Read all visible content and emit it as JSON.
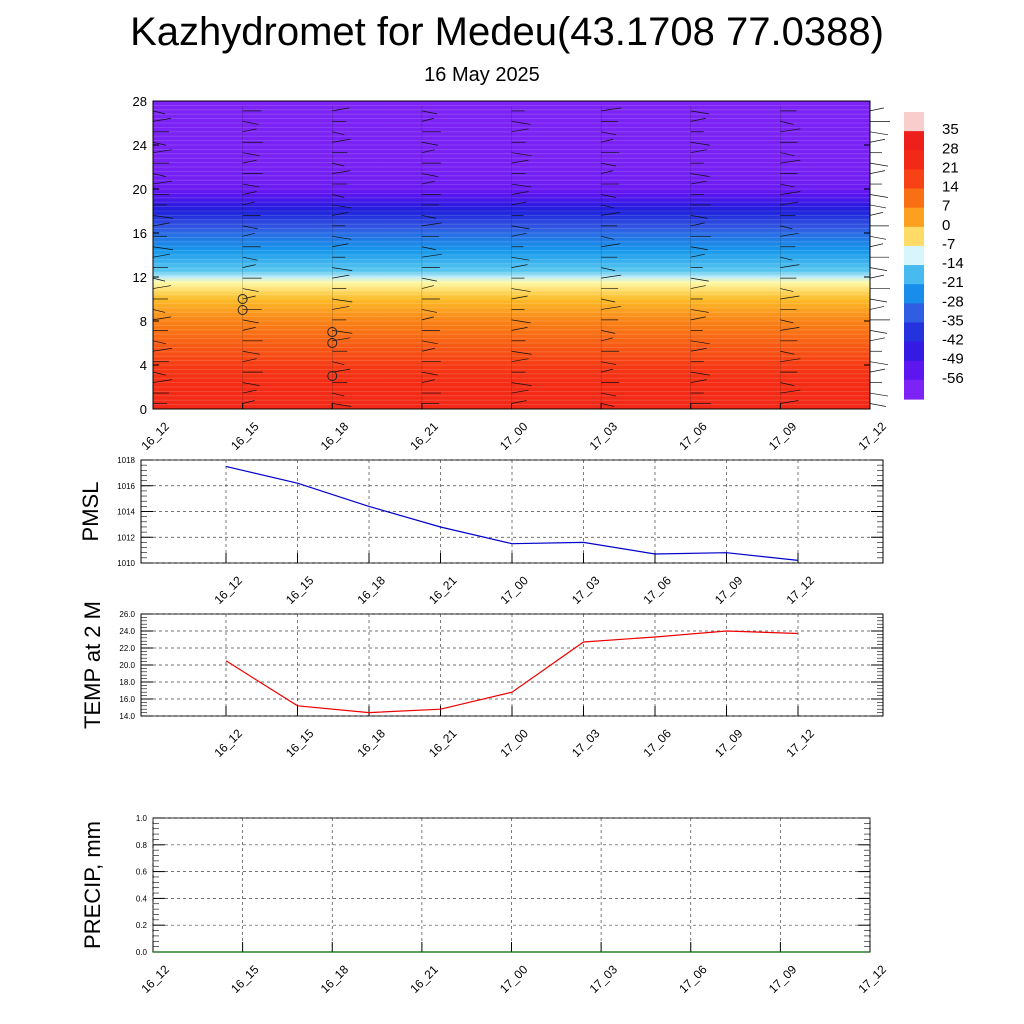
{
  "title": "Kazhydromet for Medeu(43.1708 77.0388)",
  "subtitle": "16 May 2025",
  "chart_data": [
    {
      "type": "heatmap",
      "name": "vertical-temperature-section",
      "x_ticks": [
        "16_12",
        "16_15",
        "16_18",
        "16_21",
        "17_00",
        "17_03",
        "17_06",
        "17_09",
        "17_12"
      ],
      "y_ticks": [
        "0",
        "4",
        "8",
        "12",
        "16",
        "20",
        "24",
        "28"
      ],
      "ylim": [
        0,
        28
      ],
      "colorbar_labels": [
        "35",
        "28",
        "21",
        "14",
        "7",
        "0",
        "-7",
        "-14",
        "-21",
        "-28",
        "-35",
        "-42",
        "-49",
        "-56"
      ],
      "temperature_profile": [
        {
          "level": 0,
          "value": 25
        },
        {
          "level": 4,
          "value": 18
        },
        {
          "level": 8,
          "value": 7
        },
        {
          "level": 11.5,
          "value": -7
        },
        {
          "level": 12.3,
          "value": -15
        },
        {
          "level": 16,
          "value": -30
        },
        {
          "level": 18.5,
          "value": -45
        },
        {
          "level": 20,
          "value": -56
        },
        {
          "level": 22,
          "value": -59
        },
        {
          "level": 28,
          "value": -60
        }
      ],
      "circle_markers": [
        {
          "x": "16_15",
          "level": 10
        },
        {
          "x": "16_15",
          "level": 9
        },
        {
          "x": "16_18",
          "level": 7
        },
        {
          "x": "16_18",
          "level": 6
        },
        {
          "x": "16_18",
          "level": 3
        }
      ]
    },
    {
      "type": "line",
      "ylabel": "PMSL",
      "x_ticks": [
        "16_12",
        "16_15",
        "16_18",
        "16_21",
        "17_00",
        "17_03",
        "17_06",
        "17_09",
        "17_12"
      ],
      "y_ticks": [
        "1010",
        "1012",
        "1014",
        "1016",
        "1018"
      ],
      "ylim": [
        1010,
        1018
      ],
      "grid": true,
      "series": [
        {
          "values": [
            1017.5,
            1016.2,
            1014.4,
            1012.8,
            1011.5,
            1011.6,
            1010.7,
            1010.8,
            1010.2
          ],
          "color": "#0000cc"
        }
      ]
    },
    {
      "type": "line",
      "ylabel": "TEMP at 2 M",
      "x_ticks": [
        "16_12",
        "16_15",
        "16_18",
        "16_21",
        "17_00",
        "17_03",
        "17_06",
        "17_09",
        "17_12"
      ],
      "y_ticks": [
        "14.0",
        "16.0",
        "18.0",
        "20.0",
        "22.0",
        "24.0",
        "26.0"
      ],
      "ylim": [
        14,
        26
      ],
      "grid": true,
      "series": [
        {
          "values": [
            20.5,
            15.2,
            14.4,
            14.8,
            16.8,
            22.7,
            23.3,
            24.0,
            23.7
          ],
          "color": "#ee0000"
        }
      ]
    },
    {
      "type": "line",
      "ylabel": "PRECIP, mm",
      "x_ticks": [
        "16_12",
        "16_15",
        "16_18",
        "16_21",
        "17_00",
        "17_03",
        "17_06",
        "17_09",
        "17_12"
      ],
      "y_ticks": [
        "0.0",
        "0.2",
        "0.4",
        "0.6",
        "0.8",
        "1.0"
      ],
      "ylim": [
        0,
        1
      ],
      "grid": true,
      "series": [
        {
          "values": [
            0,
            0,
            0,
            0,
            0,
            0,
            0,
            0,
            0
          ],
          "color": "#006400"
        }
      ]
    }
  ]
}
